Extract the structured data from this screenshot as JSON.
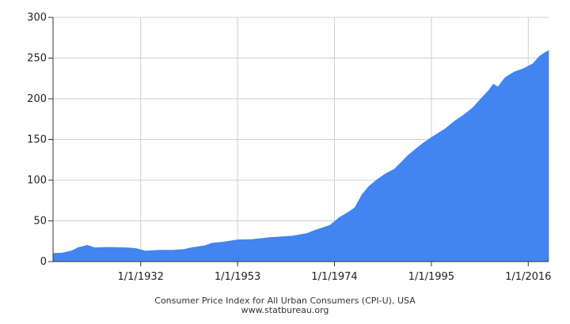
{
  "chart_data": {
    "type": "area",
    "title": "",
    "xlabel": "",
    "ylabel": "",
    "ylim": [
      0,
      300
    ],
    "grid": true,
    "x_ticks": [
      "1/1/1932",
      "1/1/1953",
      "1/1/1974",
      "1/1/1995",
      "1/1/2016"
    ],
    "y_ticks": [
      0,
      50,
      100,
      150,
      200,
      250,
      300
    ],
    "x_range": [
      "1913-01-01",
      "2020-06-01"
    ],
    "series": [
      {
        "name": "",
        "color": "#4285f0",
        "x": [
          "1913-01-01",
          "1915-01-01",
          "1917-01-01",
          "1918-06-01",
          "1920-06-01",
          "1922-01-01",
          "1925-01-01",
          "1929-01-01",
          "1931-01-01",
          "1933-01-01",
          "1936-01-01",
          "1939-01-01",
          "1941-06-01",
          "1943-01-01",
          "1946-01-01",
          "1947-06-01",
          "1950-01-01",
          "1953-01-01",
          "1956-01-01",
          "1960-01-01",
          "1965-01-01",
          "1968-01-01",
          "1970-01-01",
          "1973-01-01",
          "1975-01-01",
          "1977-01-01",
          "1978-06-01",
          "1980-01-01",
          "1981-06-01",
          "1983-01-01",
          "1985-01-01",
          "1987-01-01",
          "1990-01-01",
          "1993-01-01",
          "1995-01-01",
          "1998-01-01",
          "2000-01-01",
          "2002-01-01",
          "2004-01-01",
          "2006-01-01",
          "2007-06-01",
          "2008-06-01",
          "2009-06-01",
          "2011-01-01",
          "2013-01-01",
          "2015-01-01",
          "2017-01-01",
          "2018-06-01",
          "2019-06-01",
          "2020-06-01"
        ],
        "y": [
          10,
          10.5,
          13,
          17,
          20,
          17,
          17.5,
          17,
          16,
          13,
          14,
          14,
          15,
          17,
          19.5,
          22.5,
          24,
          26.7,
          27,
          29.5,
          31.5,
          34.5,
          38.8,
          44.4,
          53.8,
          60.6,
          66,
          82.4,
          92,
          99.6,
          107.6,
          113.6,
          130.7,
          144.5,
          152.4,
          163,
          172.2,
          180,
          188.9,
          201.6,
          210,
          218,
          214.5,
          226,
          233,
          237,
          243,
          252,
          256,
          259
        ]
      }
    ]
  },
  "caption": {
    "line1": "Consumer Price Index for All Urban Consumers (CPI-U), USA",
    "line2": "www.statbureau.org"
  }
}
